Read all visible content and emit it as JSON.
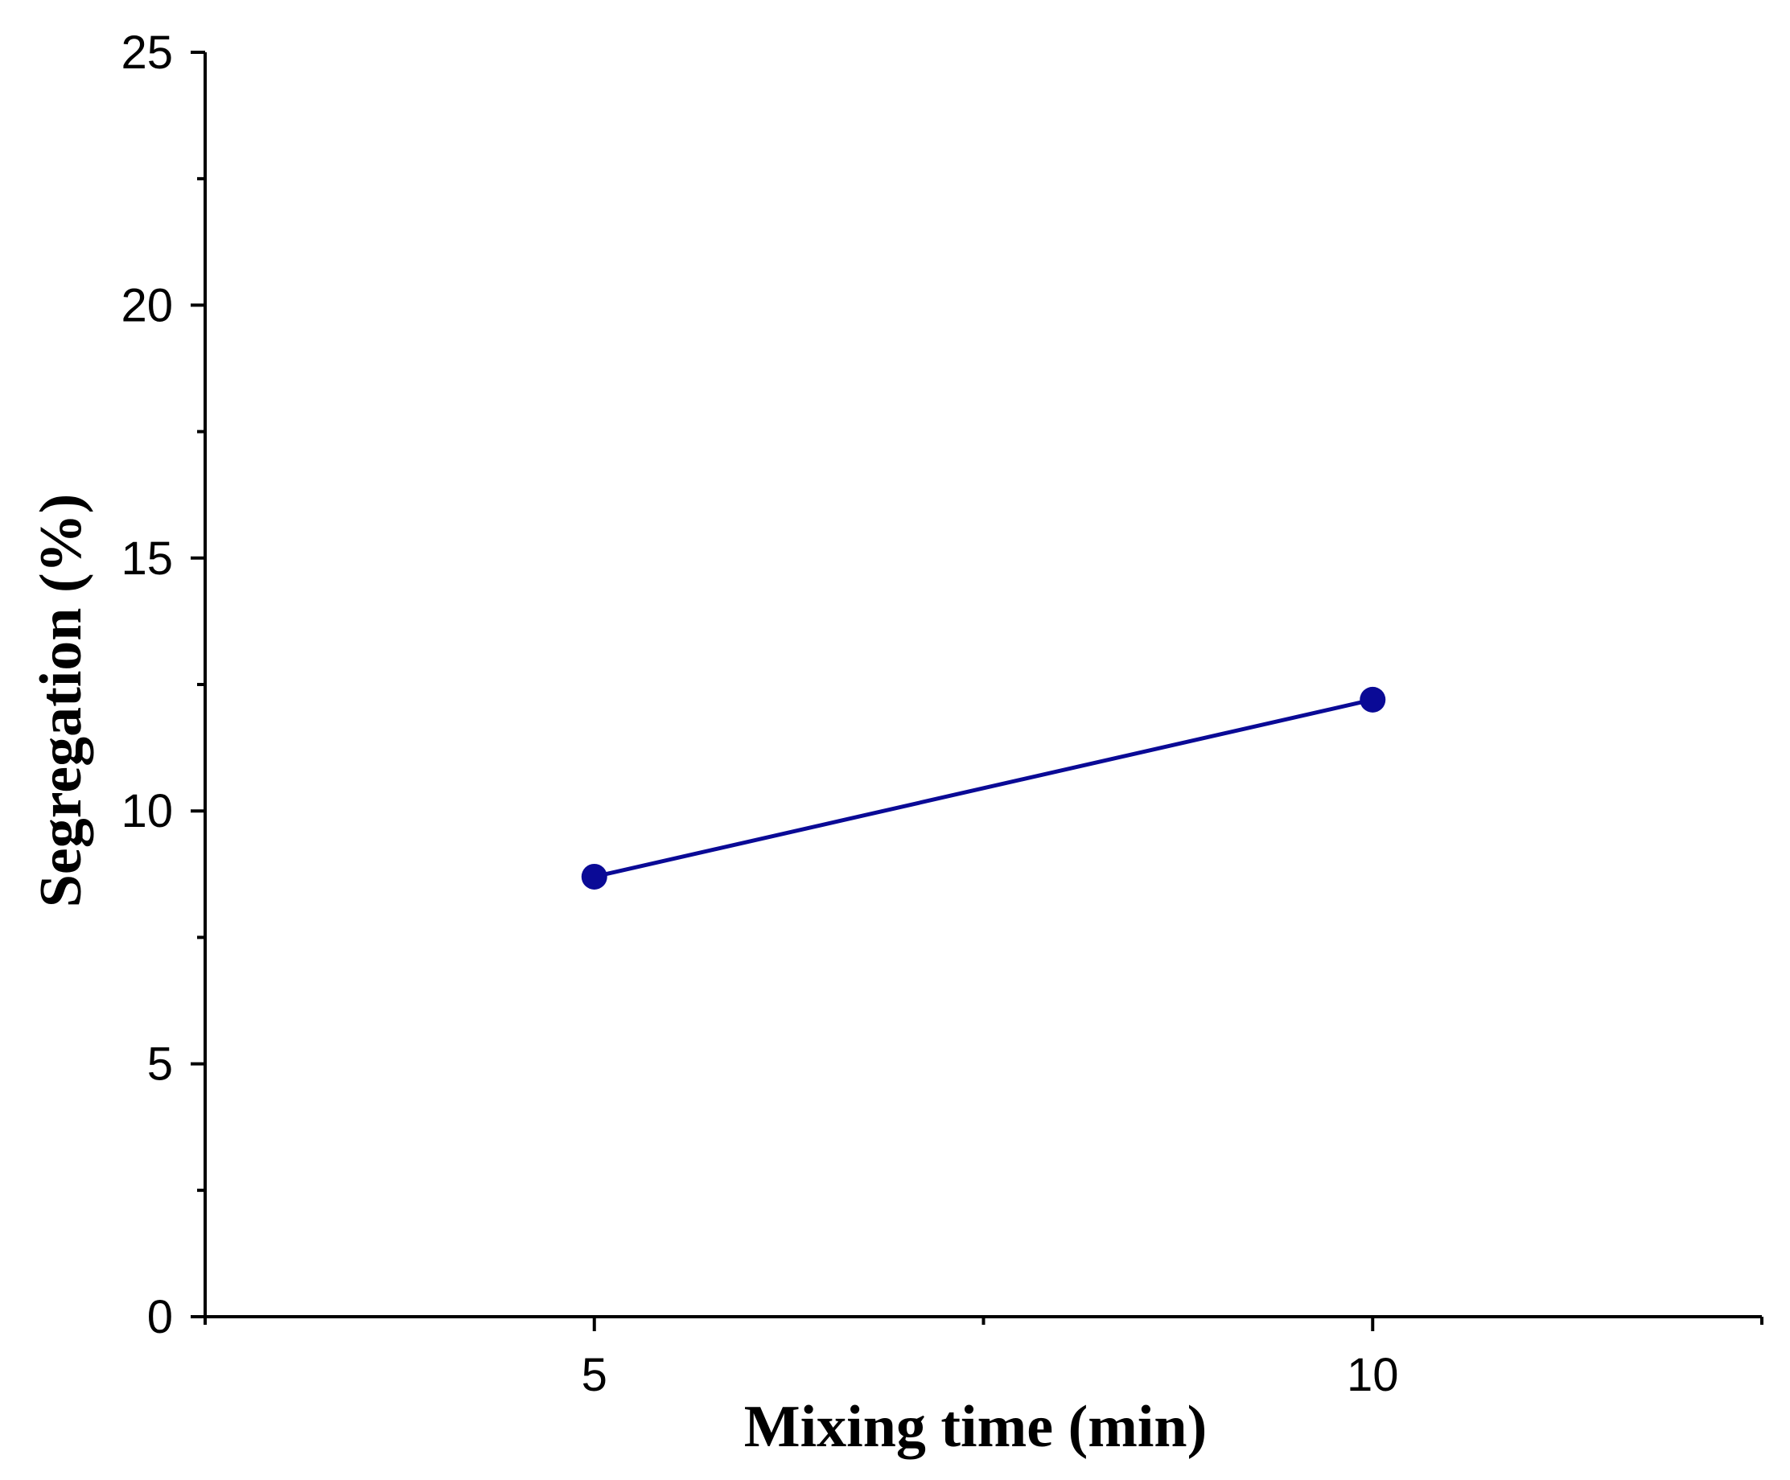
{
  "chart_data": {
    "type": "line",
    "title": "",
    "xlabel": "Mixing time (min)",
    "ylabel": "Segregation (%)",
    "xlim": [
      2.5,
      12.5
    ],
    "ylim": [
      0,
      25
    ],
    "x_ticks": [
      5,
      10
    ],
    "x_tick_labels": [
      "5",
      "10"
    ],
    "y_ticks": [
      0,
      5,
      10,
      15,
      20,
      25
    ],
    "y_tick_labels": [
      "0",
      "5",
      "10",
      "15",
      "20",
      "25"
    ],
    "grid": false,
    "legend": "none",
    "series": [
      {
        "x": [
          5,
          10
        ],
        "y": [
          8.7,
          12.2
        ],
        "color": "#0a0a96",
        "marker": "circle"
      }
    ]
  }
}
